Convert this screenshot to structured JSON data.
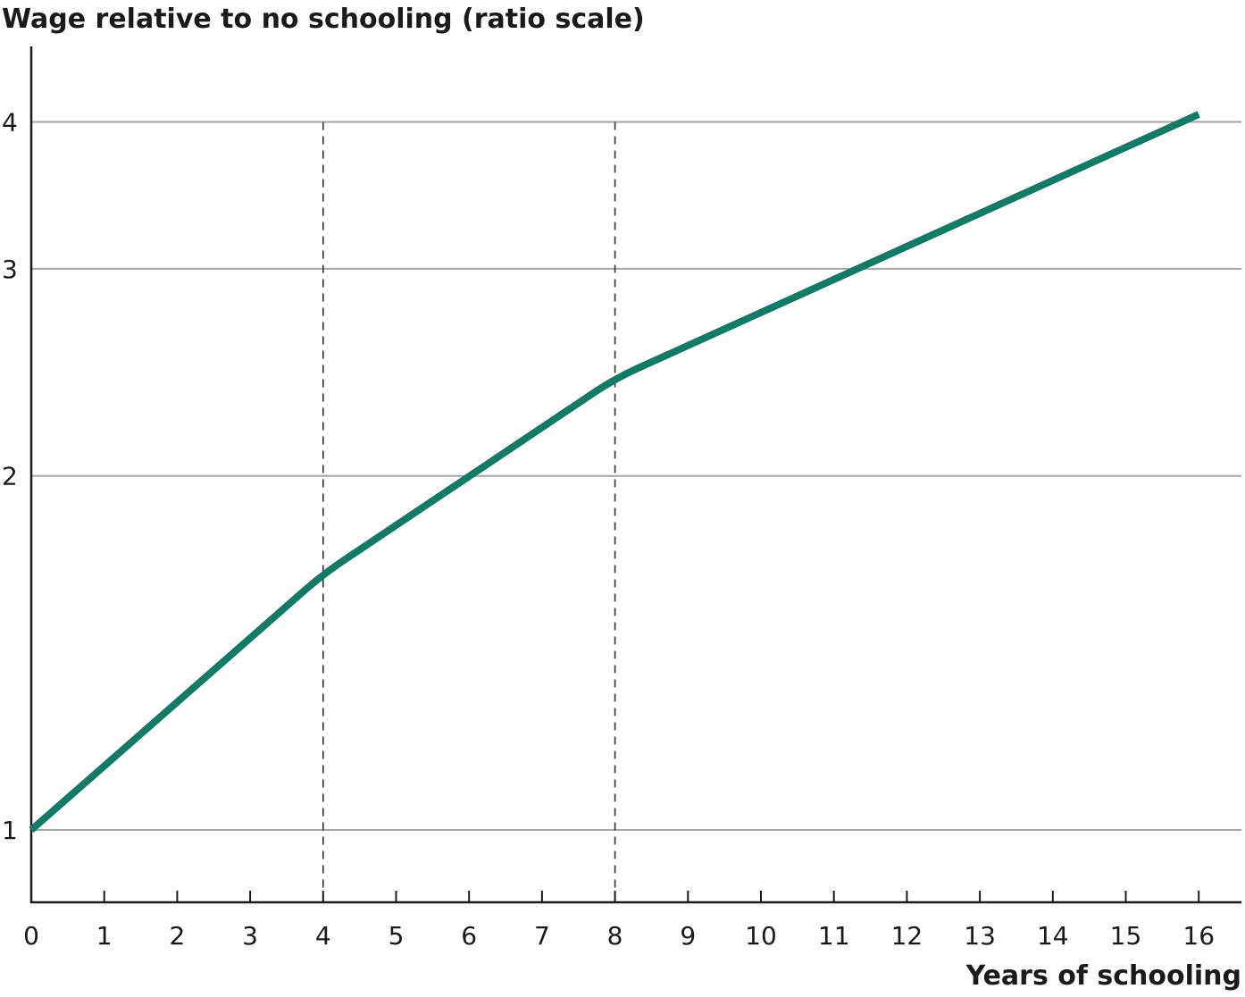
{
  "chart_data": {
    "type": "line",
    "title": "",
    "ylabel": "Wage relative to no schooling (ratio scale)",
    "xlabel": "Years of schooling",
    "y_scale": "log",
    "x_ticks": [
      0,
      1,
      2,
      3,
      4,
      5,
      6,
      7,
      8,
      9,
      10,
      11,
      12,
      13,
      14,
      15,
      16
    ],
    "y_ticks": [
      1,
      2,
      3,
      4
    ],
    "xlim": [
      0,
      16.6
    ],
    "ylim": [
      0.89,
      4.5
    ],
    "grid": "horizontal",
    "reference_lines_x": [
      4,
      8
    ],
    "series": [
      {
        "x": [
          0,
          4,
          8,
          16
        ],
        "y": [
          1.0,
          1.65,
          2.42,
          4.06
        ]
      }
    ],
    "colors": {
      "line": "#137a66",
      "grid": "#a6a6a6",
      "axis": "#1a1a1a",
      "reference": "#333333"
    }
  }
}
